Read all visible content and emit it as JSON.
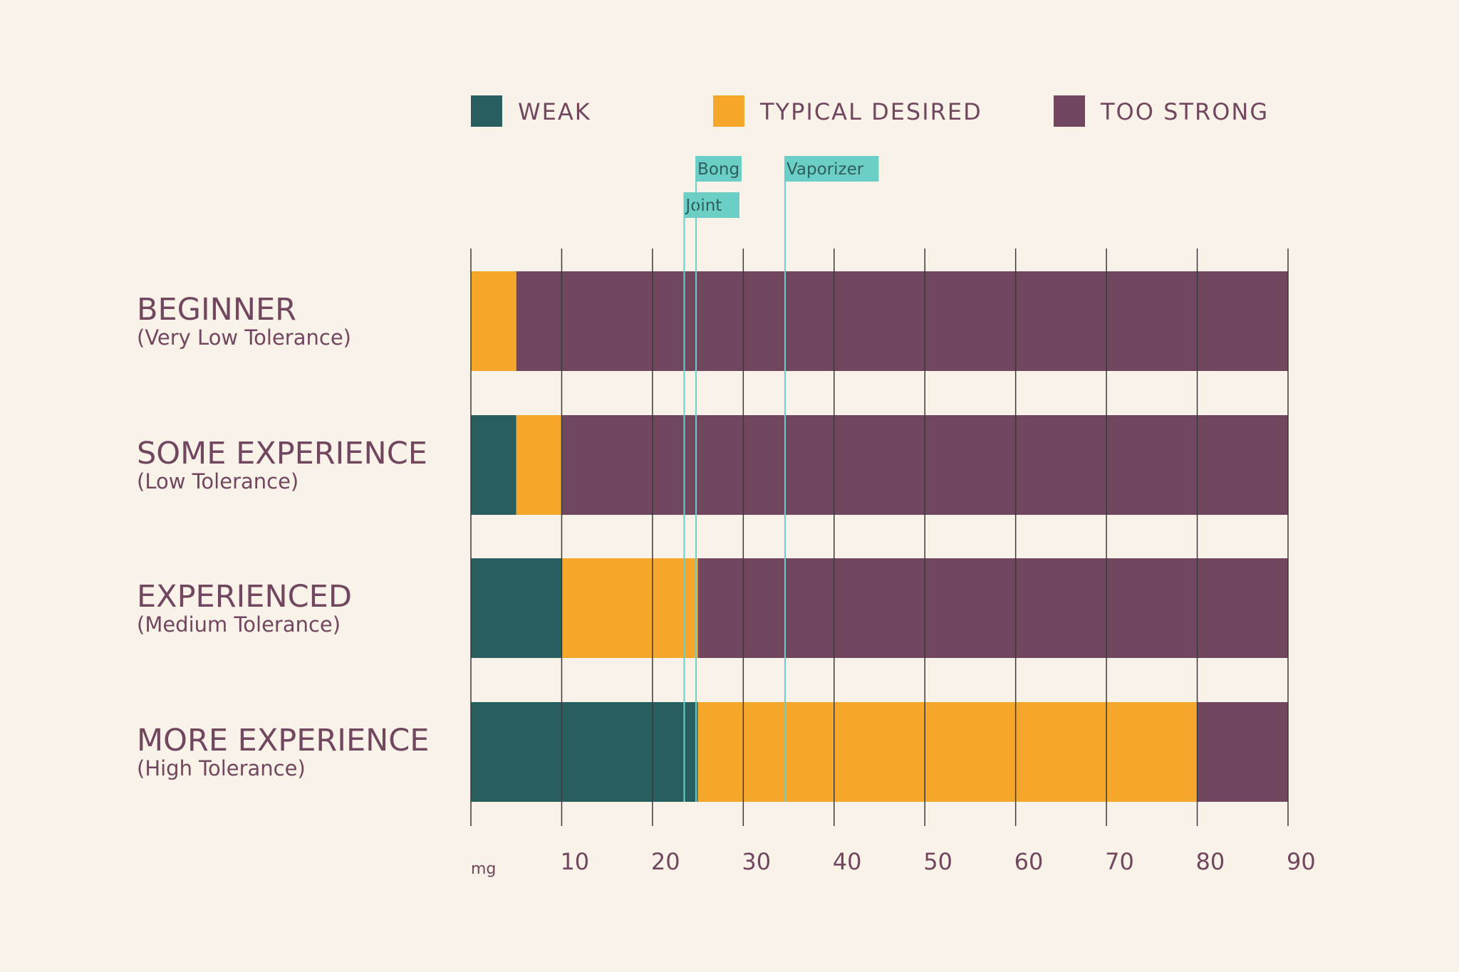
{
  "colors": {
    "background": "#f9f2e8",
    "weak": "#285f5e",
    "typical": "#f5a72c",
    "strong": "#71465f",
    "text": "#71465f",
    "grid": "#3a3a3a",
    "marker": "#6bcfc7",
    "marker_text": "#2f5f5d"
  },
  "chart_data": {
    "type": "bar",
    "orientation": "horizontal",
    "stacked": true,
    "unit_label": "mg",
    "xlim": [
      0,
      90
    ],
    "x_ticks": [
      10,
      20,
      30,
      40,
      50,
      60,
      70,
      80,
      90
    ],
    "grid": true,
    "legend_position": "top",
    "categories": [
      {
        "title": "BEGINNER",
        "subtitle": "(Very Low Tolerance)"
      },
      {
        "title": "SOME EXPERIENCE",
        "subtitle": "(Low Tolerance)"
      },
      {
        "title": "EXPERIENCED",
        "subtitle": "(Medium Tolerance)"
      },
      {
        "title": "MORE EXPERIENCE",
        "subtitle": "(High Tolerance)"
      }
    ],
    "series": [
      {
        "name": "WEAK",
        "color_key": "weak",
        "values": [
          0,
          5,
          10,
          25
        ]
      },
      {
        "name": "TYPICAL DESIRED",
        "color_key": "typical",
        "values": [
          5,
          5,
          15,
          55
        ]
      },
      {
        "name": "TOO STRONG",
        "color_key": "strong",
        "values": [
          85,
          80,
          65,
          10
        ]
      }
    ],
    "markers": [
      {
        "label": "Joint",
        "value": 23.5,
        "row": 2
      },
      {
        "label": "Bong",
        "value": 24.8,
        "row": 1
      },
      {
        "label": "Vaporizer",
        "value": 34.6,
        "row": 1
      }
    ]
  }
}
